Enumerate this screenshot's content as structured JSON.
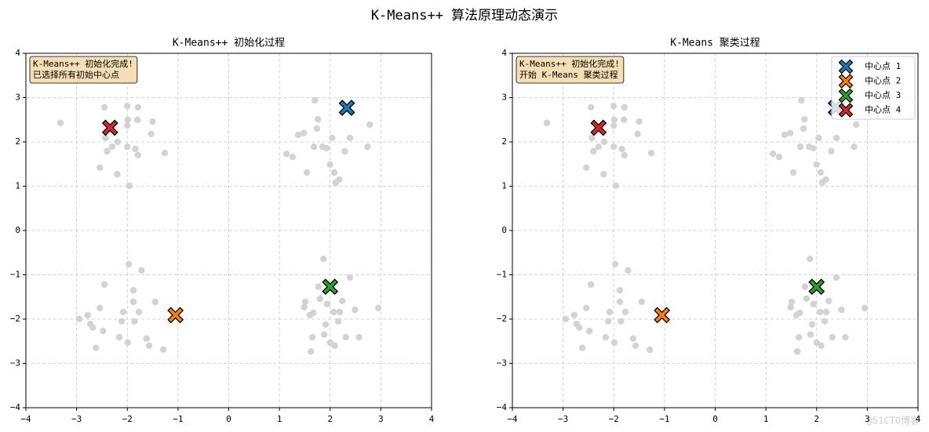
{
  "title": "K-Means++ 算法原理动态演示",
  "watermark": "@51CTO博客",
  "chart_data": [
    {
      "type": "scatter",
      "title": "K-Means++ 初始化过程",
      "annotation": [
        "K-Means++ 初始化完成!",
        "已选择所有初始中心点"
      ],
      "xlim": [
        -4,
        4
      ],
      "ylim": [
        -4,
        4
      ],
      "xticks": [
        {
          "value": -4,
          "label": "−4"
        },
        {
          "value": -3,
          "label": "−3"
        },
        {
          "value": -2,
          "label": "−2"
        },
        {
          "value": -1,
          "label": "−1"
        },
        0,
        1,
        2,
        3,
        4
      ],
      "yticks": [
        {
          "value": -4,
          "label": "−4"
        },
        {
          "value": -3,
          "label": "−3"
        },
        {
          "value": -2,
          "label": "−2"
        },
        {
          "value": -1,
          "label": "−1"
        },
        0,
        1,
        2,
        3,
        4
      ],
      "grid": true,
      "legend": null,
      "series": [
        {
          "color": "#d3d3d3",
          "marker": "dot",
          "x": [
            -3.32,
            -2.45,
            -2.0,
            -1.79,
            -1.99,
            -1.8,
            -1.5,
            -2.43,
            -2.0,
            -1.53,
            -2.19,
            -2.0,
            -1.84,
            -1.26,
            -1.79,
            -2.4,
            -2.54,
            -2.2,
            -1.96,
            -2.3,
            1.7,
            1.76,
            1.74,
            2.78,
            2.39,
            1.37,
            1.48,
            1.14,
            1.26,
            1.68,
            1.85,
            1.93,
            2.29,
            2.74,
            1.54,
            2.0,
            2.08,
            2.11,
            2.18,
            2.04,
            -1.97,
            -1.72,
            -2.45,
            -1.88,
            -1.88,
            -1.45,
            -2.54,
            -2.08,
            -1.77,
            -2.95,
            -2.78,
            -2.73,
            -2.11,
            -1.86,
            -2.68,
            -2.48,
            -2.16,
            -1.62,
            -1.99,
            -1.57,
            -2.62,
            -1.29,
            1.87,
            2.39,
            1.77,
            1.51,
            1.49,
            1.8,
            1.94,
            2.24,
            1.6,
            1.67,
            2.07,
            2.19,
            2.49,
            2.95,
            2.16,
            1.91,
            1.65,
            1.88,
            2.0,
            2.09,
            2.31,
            2.57,
            1.62
          ],
          "values": [
            2.43,
            2.78,
            2.81,
            2.78,
            2.5,
            2.5,
            2.46,
            2.09,
            2.37,
            2.18,
            2.0,
            1.89,
            1.84,
            1.75,
            1.7,
            1.79,
            1.42,
            1.27,
            1.01,
            1.89,
            2.94,
            2.51,
            2.3,
            2.39,
            2.09,
            2.16,
            2.2,
            1.73,
            1.66,
            1.89,
            1.89,
            1.86,
            1.79,
            1.89,
            1.31,
            1.49,
            1.31,
            1.08,
            1.15,
            2.09,
            -0.76,
            -0.9,
            -1.22,
            -1.35,
            -1.61,
            -1.61,
            -1.75,
            -1.84,
            -1.84,
            -2.0,
            -1.91,
            -2.11,
            -2.05,
            -2.05,
            -2.19,
            -2.27,
            -2.41,
            -2.44,
            -2.53,
            -2.6,
            -2.65,
            -2.69,
            -0.64,
            -1.06,
            -1.27,
            -1.61,
            -1.73,
            -1.54,
            -1.66,
            -1.59,
            -1.91,
            -1.86,
            -1.84,
            -1.84,
            -1.79,
            -1.75,
            -2.05,
            -2.12,
            -2.41,
            -2.35,
            -2.53,
            -2.6,
            -2.41,
            -2.41,
            -2.73
          ]
        },
        {
          "color": "#1f77b4",
          "marker": "x",
          "x": [
            2.33
          ],
          "values": [
            2.77
          ]
        },
        {
          "color": "#ff7f0e",
          "marker": "x",
          "x": [
            -1.05
          ],
          "values": [
            -1.91
          ]
        },
        {
          "color": "#2ca02c",
          "marker": "x",
          "x": [
            2.0
          ],
          "values": [
            -1.27
          ]
        },
        {
          "color": "#d62728",
          "marker": "x",
          "x": [
            -2.34
          ],
          "values": [
            2.32
          ]
        }
      ]
    },
    {
      "type": "scatter",
      "title": "K-Means 聚类过程",
      "annotation": [
        "K-Means++ 初始化完成!",
        "开始 K-Means 聚类过程"
      ],
      "xlim": [
        -4,
        4
      ],
      "ylim": [
        -4,
        4
      ],
      "xticks": [
        {
          "value": -4,
          "label": "−4"
        },
        {
          "value": -3,
          "label": "−3"
        },
        {
          "value": -2,
          "label": "−2"
        },
        {
          "value": -1,
          "label": "−1"
        },
        0,
        1,
        2,
        3,
        4
      ],
      "yticks": [
        {
          "value": -4,
          "label": "−4"
        },
        {
          "value": -3,
          "label": "−3"
        },
        {
          "value": -2,
          "label": "−2"
        },
        {
          "value": -1,
          "label": "−1"
        },
        0,
        1,
        2,
        3,
        4
      ],
      "grid": true,
      "legend": "upper right",
      "series": [
        {
          "color": "#d3d3d3",
          "marker": "dot",
          "x": [
            -3.32,
            -2.45,
            -2.0,
            -1.79,
            -1.99,
            -1.8,
            -1.5,
            -2.43,
            -2.0,
            -1.53,
            -2.19,
            -2.0,
            -1.84,
            -1.26,
            -1.79,
            -2.4,
            -2.54,
            -2.2,
            -1.96,
            -2.3,
            1.7,
            1.76,
            1.74,
            2.78,
            2.39,
            1.37,
            1.48,
            1.14,
            1.26,
            1.68,
            1.85,
            1.93,
            2.29,
            2.74,
            1.54,
            2.0,
            2.08,
            2.11,
            2.18,
            2.04,
            -1.97,
            -1.72,
            -2.45,
            -1.88,
            -1.88,
            -1.45,
            -2.54,
            -2.08,
            -1.77,
            -2.95,
            -2.78,
            -2.73,
            -2.11,
            -1.86,
            -2.68,
            -2.48,
            -2.16,
            -1.62,
            -1.99,
            -1.57,
            -2.62,
            -1.29,
            1.87,
            2.39,
            1.77,
            1.51,
            1.49,
            1.8,
            1.94,
            2.24,
            1.6,
            1.67,
            2.07,
            2.19,
            2.49,
            2.95,
            2.16,
            1.91,
            1.65,
            1.88,
            2.0,
            2.09,
            2.31,
            2.57,
            1.62
          ],
          "values": [
            2.43,
            2.78,
            2.81,
            2.78,
            2.5,
            2.5,
            2.46,
            2.09,
            2.37,
            2.18,
            2.0,
            1.89,
            1.84,
            1.75,
            1.7,
            1.79,
            1.42,
            1.27,
            1.01,
            1.89,
            2.94,
            2.51,
            2.3,
            2.39,
            2.09,
            2.16,
            2.2,
            1.73,
            1.66,
            1.89,
            1.89,
            1.86,
            1.79,
            1.89,
            1.31,
            1.49,
            1.31,
            1.08,
            1.15,
            2.09,
            -0.76,
            -0.9,
            -1.22,
            -1.35,
            -1.61,
            -1.61,
            -1.75,
            -1.84,
            -1.84,
            -2.0,
            -1.91,
            -2.11,
            -2.05,
            -2.05,
            -2.19,
            -2.27,
            -2.41,
            -2.44,
            -2.53,
            -2.6,
            -2.65,
            -2.69,
            -0.64,
            -1.06,
            -1.27,
            -1.61,
            -1.73,
            -1.54,
            -1.66,
            -1.59,
            -1.91,
            -1.86,
            -1.84,
            -1.84,
            -1.79,
            -1.75,
            -2.05,
            -2.12,
            -2.41,
            -2.35,
            -2.53,
            -2.6,
            -2.41,
            -2.41,
            -2.73
          ]
        },
        {
          "name": "中心点 1",
          "color": "#1f77b4",
          "marker": "x",
          "x": [
            2.38
          ],
          "values": [
            2.77
          ]
        },
        {
          "name": "中心点 2",
          "color": "#ff7f0e",
          "marker": "x",
          "x": [
            -1.05
          ],
          "values": [
            -1.91
          ]
        },
        {
          "name": "中心点 3",
          "color": "#2ca02c",
          "marker": "x",
          "x": [
            2.0
          ],
          "values": [
            -1.27
          ]
        },
        {
          "name": "中心点 4",
          "color": "#d62728",
          "marker": "x",
          "x": [
            -2.3
          ],
          "values": [
            2.32
          ]
        }
      ]
    }
  ]
}
